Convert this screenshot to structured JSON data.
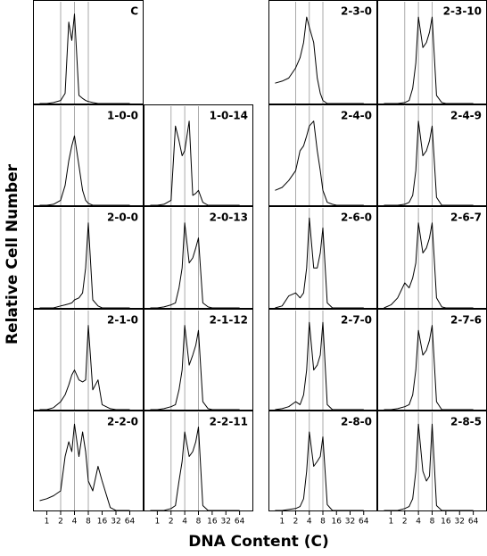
{
  "x_axis": {
    "label": "DNA Content (C)",
    "lim": [
      0.5,
      128
    ],
    "ticks": [
      1,
      2,
      4,
      8,
      16,
      32,
      64
    ],
    "log_base": 2
  },
  "y_axis": {
    "label": "Relative Cell Number",
    "lim": [
      0,
      100
    ]
  },
  "ref_lines": [
    2,
    4,
    8
  ],
  "line_color": "#000000",
  "ref_line_color": "#aaaaaa",
  "chart_data": [
    {
      "type": "line",
      "title": "C",
      "x": [
        0.7,
        1,
        1.4,
        2,
        2.5,
        3,
        3.5,
        4,
        5,
        6,
        7,
        8,
        10,
        13,
        16,
        24,
        32,
        64
      ],
      "values": [
        0,
        0,
        1,
        3,
        10,
        80,
        62,
        88,
        8,
        5,
        3,
        2,
        1,
        0,
        0,
        0,
        0,
        0
      ]
    },
    {
      "type": "line",
      "title": "2-3-0",
      "x": [
        0.7,
        1,
        1.4,
        2,
        2.5,
        3,
        3.5,
        4,
        5,
        6,
        7,
        8,
        10,
        13,
        16,
        24,
        32,
        64
      ],
      "values": [
        20,
        22,
        25,
        35,
        45,
        60,
        85,
        75,
        60,
        25,
        10,
        3,
        0,
        0,
        0,
        0,
        0,
        0
      ]
    },
    {
      "type": "line",
      "title": "2-3-10",
      "x": [
        0.7,
        1,
        1.4,
        2,
        2.5,
        3,
        3.5,
        4,
        5,
        6,
        7,
        8,
        10,
        13,
        16,
        24,
        32,
        64
      ],
      "values": [
        0,
        0,
        0,
        1,
        3,
        15,
        40,
        85,
        55,
        60,
        70,
        85,
        8,
        1,
        0,
        0,
        0,
        0
      ]
    },
    {
      "type": "line",
      "title": "1-0-0",
      "x": [
        0.7,
        1,
        1.4,
        2,
        2.5,
        3,
        3.5,
        4,
        5,
        6,
        7,
        8,
        10,
        13,
        16,
        24,
        32,
        64
      ],
      "values": [
        0,
        0,
        1,
        5,
        20,
        45,
        60,
        70,
        40,
        15,
        5,
        2,
        0,
        0,
        0,
        0,
        0,
        0
      ]
    },
    {
      "type": "line",
      "title": "1-0-14",
      "x": [
        0.7,
        1,
        1.4,
        2,
        2.5,
        3,
        3.5,
        4,
        5,
        6,
        7,
        8,
        10,
        13,
        16,
        24,
        32,
        64
      ],
      "values": [
        0,
        0,
        1,
        5,
        80,
        65,
        50,
        55,
        85,
        10,
        12,
        15,
        3,
        0,
        0,
        0,
        0,
        0
      ]
    },
    {
      "type": "line",
      "title": "2-4-0",
      "x": [
        0.7,
        1,
        1.4,
        2,
        2.5,
        3,
        3.5,
        4,
        5,
        6,
        7,
        8,
        10,
        13,
        16,
        24,
        32,
        64
      ],
      "values": [
        15,
        18,
        25,
        35,
        55,
        60,
        70,
        80,
        85,
        55,
        35,
        15,
        3,
        1,
        0,
        0,
        0,
        0
      ]
    },
    {
      "type": "line",
      "title": "2-4-9",
      "x": [
        0.7,
        1,
        1.4,
        2,
        2.5,
        3,
        3.5,
        4,
        5,
        6,
        7,
        8,
        10,
        13,
        16,
        24,
        32,
        64
      ],
      "values": [
        0,
        0,
        0,
        1,
        3,
        10,
        35,
        85,
        50,
        55,
        65,
        80,
        8,
        0,
        0,
        0,
        0,
        0
      ]
    },
    {
      "type": "line",
      "title": "2-0-0",
      "x": [
        0.7,
        1,
        1.4,
        2,
        2.5,
        3,
        3.5,
        4,
        5,
        6,
        7,
        8,
        10,
        13,
        16,
        24,
        32,
        64
      ],
      "values": [
        0,
        0,
        0,
        2,
        3,
        4,
        5,
        8,
        10,
        15,
        40,
        85,
        8,
        2,
        0,
        0,
        0,
        0
      ]
    },
    {
      "type": "line",
      "title": "2-0-13",
      "x": [
        0.7,
        1,
        1.4,
        2,
        2.5,
        3,
        3.5,
        4,
        5,
        6,
        7,
        8,
        10,
        13,
        16,
        24,
        32,
        64
      ],
      "values": [
        0,
        0,
        1,
        3,
        5,
        20,
        40,
        85,
        45,
        50,
        60,
        70,
        5,
        1,
        0,
        0,
        0,
        0
      ]
    },
    {
      "type": "line",
      "title": "2-6-0",
      "x": [
        0.7,
        1,
        1.4,
        2,
        2.5,
        3,
        3.5,
        4,
        5,
        6,
        7,
        8,
        10,
        13,
        16,
        24,
        32,
        64
      ],
      "values": [
        0,
        2,
        12,
        15,
        10,
        15,
        40,
        90,
        40,
        40,
        55,
        80,
        5,
        0,
        0,
        0,
        0,
        0
      ]
    },
    {
      "type": "line",
      "title": "2-6-7",
      "x": [
        0.7,
        1,
        1.4,
        2,
        2.5,
        3,
        3.5,
        4,
        5,
        6,
        7,
        8,
        10,
        13,
        16,
        24,
        32,
        64
      ],
      "values": [
        0,
        3,
        10,
        25,
        20,
        30,
        45,
        85,
        55,
        60,
        70,
        85,
        10,
        1,
        0,
        0,
        0,
        0
      ]
    },
    {
      "type": "line",
      "title": "2-1-0",
      "x": [
        0.7,
        1,
        1.4,
        2,
        2.5,
        3,
        3.5,
        4,
        5,
        6,
        7,
        8,
        10,
        13,
        16,
        24,
        32,
        64
      ],
      "values": [
        0,
        0,
        2,
        8,
        15,
        25,
        35,
        40,
        30,
        28,
        30,
        85,
        20,
        30,
        5,
        1,
        0,
        0
      ]
    },
    {
      "type": "line",
      "title": "2-1-12",
      "x": [
        0.7,
        1,
        1.4,
        2,
        2.5,
        3,
        3.5,
        4,
        5,
        6,
        7,
        8,
        10,
        13,
        16,
        24,
        32,
        64
      ],
      "values": [
        0,
        0,
        1,
        3,
        5,
        20,
        40,
        85,
        45,
        55,
        65,
        80,
        8,
        1,
        0,
        0,
        0,
        0
      ]
    },
    {
      "type": "line",
      "title": "2-7-0",
      "x": [
        0.7,
        1,
        1.4,
        2,
        2.5,
        3,
        3.5,
        4,
        5,
        6,
        7,
        8,
        10,
        13,
        16,
        24,
        32,
        64
      ],
      "values": [
        0,
        1,
        3,
        8,
        5,
        15,
        40,
        88,
        40,
        45,
        55,
        88,
        5,
        0,
        0,
        0,
        0,
        0
      ]
    },
    {
      "type": "line",
      "title": "2-7-6",
      "x": [
        0.7,
        1,
        1.4,
        2,
        2.5,
        3,
        3.5,
        4,
        5,
        6,
        7,
        8,
        10,
        13,
        16,
        24,
        32,
        64
      ],
      "values": [
        0,
        0,
        1,
        3,
        5,
        15,
        40,
        80,
        55,
        60,
        70,
        85,
        8,
        0,
        0,
        0,
        0,
        0
      ]
    },
    {
      "type": "line",
      "title": "2-2-0",
      "x": [
        0.7,
        1,
        1.4,
        2,
        2.5,
        3,
        3.5,
        4,
        5,
        6,
        7,
        8,
        10,
        13,
        16,
        24,
        32,
        64
      ],
      "values": [
        10,
        12,
        15,
        20,
        55,
        70,
        60,
        88,
        55,
        80,
        60,
        30,
        20,
        45,
        30,
        3,
        0,
        0
      ]
    },
    {
      "type": "line",
      "title": "2-2-11",
      "x": [
        0.7,
        1,
        1.4,
        2,
        2.5,
        3,
        3.5,
        4,
        5,
        6,
        7,
        8,
        10,
        13,
        16,
        24,
        32,
        64
      ],
      "values": [
        0,
        0,
        0,
        2,
        5,
        30,
        50,
        80,
        55,
        60,
        70,
        85,
        5,
        0,
        0,
        0,
        0,
        0
      ]
    },
    {
      "type": "line",
      "title": "2-8-0",
      "x": [
        0.7,
        1,
        1.4,
        2,
        2.5,
        3,
        3.5,
        4,
        5,
        6,
        7,
        8,
        10,
        13,
        16,
        24,
        32,
        64
      ],
      "values": [
        0,
        0,
        1,
        2,
        4,
        12,
        40,
        80,
        45,
        50,
        55,
        75,
        6,
        0,
        0,
        0,
        0,
        0
      ]
    },
    {
      "type": "line",
      "title": "2-8-5",
      "x": [
        0.7,
        1,
        1.4,
        2,
        2.5,
        3,
        3.5,
        4,
        5,
        6,
        7,
        8,
        10,
        13,
        16,
        24,
        32,
        64
      ],
      "values": [
        0,
        0,
        0,
        2,
        4,
        12,
        40,
        88,
        40,
        30,
        35,
        88,
        5,
        0,
        0,
        0,
        0,
        0
      ]
    }
  ]
}
